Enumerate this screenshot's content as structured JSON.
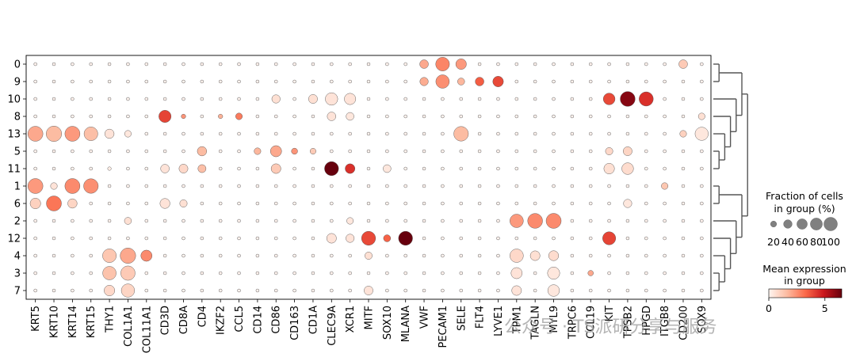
{
  "chart_data": {
    "type": "scatter",
    "subtype": "dotplot",
    "genes": [
      "KRT5",
      "KRT10",
      "KRT14",
      "KRT15",
      "THY1",
      "COL1A1",
      "COL11A1",
      "CD3D",
      "CD8A",
      "CD4",
      "IKZF2",
      "CCL5",
      "CD14",
      "CD86",
      "CD163",
      "CD1A",
      "CLEC9A",
      "XCR1",
      "MITF",
      "SOX10",
      "MLANA",
      "VWF",
      "PECAM1",
      "SELE",
      "FLT4",
      "LYVE1",
      "TPM1",
      "TAGLN",
      "MYL9",
      "TRPC6",
      "CCL19",
      "KIT",
      "TPSB2",
      "HPGD",
      "ITGB8",
      "CD200",
      "SOX9"
    ],
    "groups": [
      "0",
      "9",
      "10",
      "8",
      "13",
      "5",
      "11",
      "1",
      "6",
      "2",
      "12",
      "4",
      "3",
      "7"
    ],
    "default_dot": {
      "fraction": 4,
      "expression": 0.05
    },
    "highlights": [
      {
        "group": "0",
        "gene": "VWF",
        "fraction": 30,
        "expression": 2.0
      },
      {
        "group": "0",
        "gene": "PECAM1",
        "fraction": 75,
        "expression": 2.7
      },
      {
        "group": "0",
        "gene": "SELE",
        "fraction": 45,
        "expression": 2.3
      },
      {
        "group": "0",
        "gene": "CD200",
        "fraction": 30,
        "expression": 1.2
      },
      {
        "group": "9",
        "gene": "VWF",
        "fraction": 28,
        "expression": 1.9
      },
      {
        "group": "9",
        "gene": "PECAM1",
        "fraction": 72,
        "expression": 2.5
      },
      {
        "group": "9",
        "gene": "SELE",
        "fraction": 20,
        "expression": 1.7
      },
      {
        "group": "9",
        "gene": "FLT4",
        "fraction": 30,
        "expression": 3.5
      },
      {
        "group": "9",
        "gene": "LYVE1",
        "fraction": 45,
        "expression": 3.9
      },
      {
        "group": "10",
        "gene": "CD86",
        "fraction": 28,
        "expression": 0.6
      },
      {
        "group": "10",
        "gene": "CD1A",
        "fraction": 32,
        "expression": 0.6
      },
      {
        "group": "10",
        "gene": "CLEC9A",
        "fraction": 62,
        "expression": 0.5
      },
      {
        "group": "10",
        "gene": "XCR1",
        "fraction": 52,
        "expression": 0.5
      },
      {
        "group": "10",
        "gene": "KIT",
        "fraction": 55,
        "expression": 3.9
      },
      {
        "group": "10",
        "gene": "TPSB2",
        "fraction": 88,
        "expression": 6.0
      },
      {
        "group": "10",
        "gene": "HPGD",
        "fraction": 80,
        "expression": 4.4
      },
      {
        "group": "8",
        "gene": "CD3D",
        "fraction": 60,
        "expression": 4.0
      },
      {
        "group": "8",
        "gene": "CD8A",
        "fraction": 8,
        "expression": 2.4
      },
      {
        "group": "8",
        "gene": "IKZF2",
        "fraction": 8,
        "expression": 1.8
      },
      {
        "group": "8",
        "gene": "CCL5",
        "fraction": 18,
        "expression": 2.9
      },
      {
        "group": "8",
        "gene": "CLEC9A",
        "fraction": 30,
        "expression": 0.5
      },
      {
        "group": "8",
        "gene": "XCR1",
        "fraction": 25,
        "expression": 0.4
      },
      {
        "group": "8",
        "gene": "SOX9",
        "fraction": 18,
        "expression": 0.6
      },
      {
        "group": "13",
        "gene": "KRT5",
        "fraction": 90,
        "expression": 2.0
      },
      {
        "group": "13",
        "gene": "KRT10",
        "fraction": 95,
        "expression": 1.6
      },
      {
        "group": "13",
        "gene": "KRT14",
        "fraction": 90,
        "expression": 2.3
      },
      {
        "group": "13",
        "gene": "KRT15",
        "fraction": 75,
        "expression": 1.5
      },
      {
        "group": "13",
        "gene": "THY1",
        "fraction": 35,
        "expression": 0.5
      },
      {
        "group": "13",
        "gene": "COL1A1",
        "fraction": 18,
        "expression": 0.4
      },
      {
        "group": "13",
        "gene": "SELE",
        "fraction": 85,
        "expression": 1.6
      },
      {
        "group": "13",
        "gene": "CD200",
        "fraction": 18,
        "expression": 1.0
      },
      {
        "group": "13",
        "gene": "SOX9",
        "fraction": 70,
        "expression": 0.4
      },
      {
        "group": "5",
        "gene": "CD4",
        "fraction": 35,
        "expression": 1.6
      },
      {
        "group": "5",
        "gene": "CD14",
        "fraction": 18,
        "expression": 1.7
      },
      {
        "group": "5",
        "gene": "CD86",
        "fraction": 50,
        "expression": 2.0
      },
      {
        "group": "5",
        "gene": "CD163",
        "fraction": 15,
        "expression": 2.4
      },
      {
        "group": "5",
        "gene": "CD1A",
        "fraction": 14,
        "expression": 1.2
      },
      {
        "group": "5",
        "gene": "KIT",
        "fraction": 22,
        "expression": 0.8
      },
      {
        "group": "5",
        "gene": "TPSB2",
        "fraction": 32,
        "expression": 0.9
      },
      {
        "group": "11",
        "gene": "THY1",
        "fraction": 5,
        "expression": 0.2
      },
      {
        "group": "11",
        "gene": "CD3D",
        "fraction": 30,
        "expression": 0.5
      },
      {
        "group": "11",
        "gene": "CD8A",
        "fraction": 32,
        "expression": 0.8
      },
      {
        "group": "11",
        "gene": "CD4",
        "fraction": 26,
        "expression": 1.5
      },
      {
        "group": "11",
        "gene": "CD86",
        "fraction": 38,
        "expression": 1.2
      },
      {
        "group": "11",
        "gene": "CLEC9A",
        "fraction": 78,
        "expression": 6.5
      },
      {
        "group": "11",
        "gene": "XCR1",
        "fraction": 38,
        "expression": 4.4
      },
      {
        "group": "11",
        "gene": "SOX10",
        "fraction": 25,
        "expression": 0.4
      },
      {
        "group": "11",
        "gene": "KIT",
        "fraction": 45,
        "expression": 0.6
      },
      {
        "group": "11",
        "gene": "TPSB2",
        "fraction": 55,
        "expression": 0.7
      },
      {
        "group": "1",
        "gene": "KRT5",
        "fraction": 90,
        "expression": 2.3
      },
      {
        "group": "1",
        "gene": "KRT10",
        "fraction": 18,
        "expression": 0.5
      },
      {
        "group": "1",
        "gene": "KRT14",
        "fraction": 90,
        "expression": 2.6
      },
      {
        "group": "1",
        "gene": "KRT15",
        "fraction": 85,
        "expression": 2.5
      },
      {
        "group": "1",
        "gene": "ITGB8",
        "fraction": 18,
        "expression": 1.3
      },
      {
        "group": "6",
        "gene": "KRT5",
        "fraction": 45,
        "expression": 1.0
      },
      {
        "group": "6",
        "gene": "KRT10",
        "fraction": 90,
        "expression": 3.0
      },
      {
        "group": "6",
        "gene": "KRT14",
        "fraction": 35,
        "expression": 0.9
      },
      {
        "group": "6",
        "gene": "CD3D",
        "fraction": 40,
        "expression": 0.5
      },
      {
        "group": "6",
        "gene": "CD8A",
        "fraction": 22,
        "expression": 0.6
      },
      {
        "group": "6",
        "gene": "TPSB2",
        "fraction": 28,
        "expression": 0.4
      },
      {
        "group": "2",
        "gene": "COL1A1",
        "fraction": 20,
        "expression": 0.6
      },
      {
        "group": "2",
        "gene": "TPM1",
        "fraction": 72,
        "expression": 2.3
      },
      {
        "group": "2",
        "gene": "TAGLN",
        "fraction": 88,
        "expression": 2.6
      },
      {
        "group": "2",
        "gene": "MYL9",
        "fraction": 90,
        "expression": 2.6
      },
      {
        "group": "2",
        "gene": "XCR1",
        "fraction": 18,
        "expression": 0.4
      },
      {
        "group": "12",
        "gene": "CLEC9A",
        "fraction": 38,
        "expression": 0.5
      },
      {
        "group": "12",
        "gene": "XCR1",
        "fraction": 28,
        "expression": 0.5
      },
      {
        "group": "12",
        "gene": "MITF",
        "fraction": 78,
        "expression": 3.9
      },
      {
        "group": "12",
        "gene": "SOX10",
        "fraction": 20,
        "expression": 3.4
      },
      {
        "group": "12",
        "gene": "MLANA",
        "fraction": 78,
        "expression": 6.5
      },
      {
        "group": "12",
        "gene": "KIT",
        "fraction": 68,
        "expression": 4.0
      },
      {
        "group": "4",
        "gene": "THY1",
        "fraction": 75,
        "expression": 1.3
      },
      {
        "group": "4",
        "gene": "COL1A1",
        "fraction": 95,
        "expression": 2.0
      },
      {
        "group": "4",
        "gene": "COL11A1",
        "fraction": 50,
        "expression": 2.6
      },
      {
        "group": "4",
        "gene": "MITF",
        "fraction": 22,
        "expression": 0.6
      },
      {
        "group": "4",
        "gene": "TPM1",
        "fraction": 72,
        "expression": 0.8
      },
      {
        "group": "4",
        "gene": "TAGLN",
        "fraction": 38,
        "expression": 0.6
      },
      {
        "group": "4",
        "gene": "MYL9",
        "fraction": 40,
        "expression": 0.7
      },
      {
        "group": "3",
        "gene": "THY1",
        "fraction": 72,
        "expression": 1.4
      },
      {
        "group": "3",
        "gene": "COL1A1",
        "fraction": 82,
        "expression": 1.2
      },
      {
        "group": "3",
        "gene": "TPM1",
        "fraction": 50,
        "expression": 0.5
      },
      {
        "group": "3",
        "gene": "MYL9",
        "fraction": 60,
        "expression": 0.4
      },
      {
        "group": "3",
        "gene": "CCL19",
        "fraction": 12,
        "expression": 2.0
      },
      {
        "group": "7",
        "gene": "THY1",
        "fraction": 45,
        "expression": 0.8
      },
      {
        "group": "7",
        "gene": "COL1A1",
        "fraction": 70,
        "expression": 0.9
      },
      {
        "group": "7",
        "gene": "MITF",
        "fraction": 32,
        "expression": 0.5
      },
      {
        "group": "7",
        "gene": "TPM1",
        "fraction": 38,
        "expression": 0.5
      },
      {
        "group": "7",
        "gene": "MYL9",
        "fraction": 55,
        "expression": 0.4
      }
    ],
    "size_legend": {
      "title_line1": "Fraction of cells",
      "title_line2": "in group (%)",
      "ticks": [
        20,
        40,
        60,
        80,
        100
      ]
    },
    "color_legend": {
      "title_line1": "Mean expression",
      "title_line2": "in group",
      "ticks": [
        0,
        5
      ],
      "vmin": 0,
      "vmax": 6.5,
      "colormap": "Reds"
    },
    "dendrogram": "right"
  },
  "watermark": {
    "text": "公众号 · TS派研分享与服务"
  }
}
